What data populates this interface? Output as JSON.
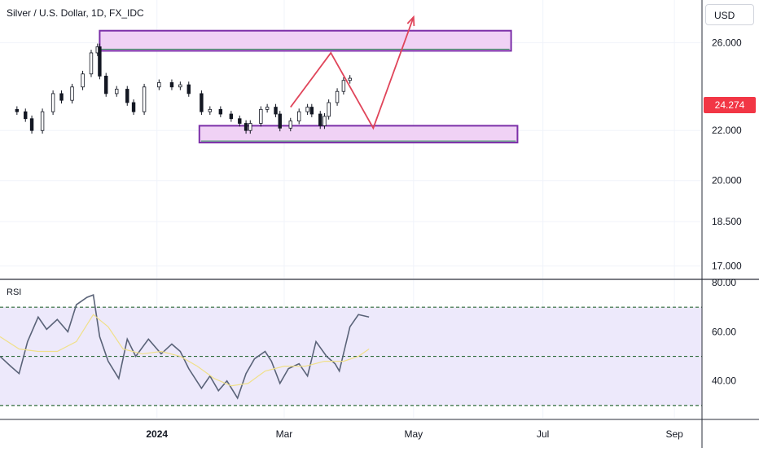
{
  "header": {
    "symbol_title": "Silver / U.S. Dollar, 1D, FX_IDC",
    "currency_button": "USD"
  },
  "price_badge": {
    "value": "24.274",
    "color": "#f23645"
  },
  "rsi_panel": {
    "label": "RSI"
  },
  "colors": {
    "candle_up": "#131722",
    "zone_fill": "#f0d2f5",
    "zone_border": "#7b2fa8",
    "zone_inner_border": "#2e8b57",
    "arrow": "#e0455a",
    "rsi_line": "#5a6378",
    "rsi_ma": "#f0e08a",
    "rsi_band_fill": "#ede9fb",
    "rsi_levels": "#2e6b3a",
    "grid": "#f0f3fa"
  },
  "chart_data": [
    {
      "type": "candlestick",
      "title": "Silver / U.S. Dollar, 1D, FX_IDC",
      "x_tick_labels": [
        "2024",
        "Mar",
        "May",
        "Jul",
        "Sep"
      ],
      "x_tick_dates": [
        "2024-01-01",
        "2024-03-01",
        "2024-05-01",
        "2024-07-01",
        "2024-09-01"
      ],
      "y_tick_labels": [
        "17.000",
        "18.500",
        "20.000",
        "22.000",
        "26.000"
      ],
      "y_tick_values": [
        17.0,
        18.5,
        20.0,
        22.0,
        26.0
      ],
      "xlim": [
        "2023-10-19",
        "2024-09-14"
      ],
      "ylim": [
        16.6,
        28.2
      ],
      "y_scale": "log",
      "last_price": 24.274,
      "closes": [
        {
          "date": "2023-10-23",
          "close": 22.9
        },
        {
          "date": "2023-10-27",
          "close": 22.8
        },
        {
          "date": "2023-10-31",
          "close": 22.5
        },
        {
          "date": "2023-11-03",
          "close": 22.0
        },
        {
          "date": "2023-11-08",
          "close": 22.8
        },
        {
          "date": "2023-11-13",
          "close": 23.6
        },
        {
          "date": "2023-11-17",
          "close": 23.3
        },
        {
          "date": "2023-11-22",
          "close": 23.9
        },
        {
          "date": "2023-11-27",
          "close": 24.5
        },
        {
          "date": "2023-12-01",
          "close": 25.5
        },
        {
          "date": "2023-12-04",
          "close": 25.8
        },
        {
          "date": "2023-12-05",
          "close": 24.4
        },
        {
          "date": "2023-12-08",
          "close": 23.6
        },
        {
          "date": "2023-12-13",
          "close": 23.8
        },
        {
          "date": "2023-12-18",
          "close": 23.2
        },
        {
          "date": "2023-12-21",
          "close": 22.8
        },
        {
          "date": "2023-12-26",
          "close": 23.9
        },
        {
          "date": "2024-01-02",
          "close": 24.1
        },
        {
          "date": "2024-01-08",
          "close": 23.9
        },
        {
          "date": "2024-01-12",
          "close": 24.0
        },
        {
          "date": "2024-01-16",
          "close": 23.6
        },
        {
          "date": "2024-01-22",
          "close": 22.8
        },
        {
          "date": "2024-01-26",
          "close": 22.9
        },
        {
          "date": "2024-01-31",
          "close": 22.7
        },
        {
          "date": "2024-02-05",
          "close": 22.5
        },
        {
          "date": "2024-02-09",
          "close": 22.3
        },
        {
          "date": "2024-02-12",
          "close": 22.0
        },
        {
          "date": "2024-02-14",
          "close": 22.3
        },
        {
          "date": "2024-02-19",
          "close": 22.9
        },
        {
          "date": "2024-02-22",
          "close": 23.0
        },
        {
          "date": "2024-02-26",
          "close": 22.7
        },
        {
          "date": "2024-02-28",
          "close": 22.1
        },
        {
          "date": "2024-03-04",
          "close": 22.4
        },
        {
          "date": "2024-03-08",
          "close": 22.8
        },
        {
          "date": "2024-03-12",
          "close": 23.0
        },
        {
          "date": "2024-03-14",
          "close": 22.7
        },
        {
          "date": "2024-03-18",
          "close": 22.2
        },
        {
          "date": "2024-03-20",
          "close": 22.6
        },
        {
          "date": "2024-03-22",
          "close": 23.2
        },
        {
          "date": "2024-03-26",
          "close": 23.7
        },
        {
          "date": "2024-03-29",
          "close": 24.2
        },
        {
          "date": "2024-04-01",
          "close": 24.3
        }
      ],
      "zones": [
        {
          "name": "resistance",
          "from": "2023-12-05",
          "to": "2024-06-16",
          "low": 25.6,
          "high": 26.6
        },
        {
          "name": "support",
          "from": "2024-01-21",
          "to": "2024-06-19",
          "low": 21.5,
          "high": 22.2
        }
      ],
      "projection_path": [
        {
          "date": "2024-03-04",
          "price": 23.0
        },
        {
          "date": "2024-03-23",
          "price": 25.5
        },
        {
          "date": "2024-04-12",
          "price": 22.1
        },
        {
          "date": "2024-05-01",
          "price": 27.3
        }
      ]
    },
    {
      "type": "line",
      "title": "RSI",
      "y_tick_labels": [
        "40.00",
        "60.00",
        "80.00"
      ],
      "y_tick_values": [
        40,
        60,
        80
      ],
      "ylim": [
        25,
        81
      ],
      "levels": [
        30,
        50,
        70
      ],
      "series": [
        {
          "values": [
            {
              "date": "2023-10-19",
              "value": 50
            },
            {
              "date": "2023-10-24",
              "value": 46
            },
            {
              "date": "2023-10-28",
              "value": 43
            },
            {
              "date": "2023-11-01",
              "value": 56
            },
            {
              "date": "2023-11-06",
              "value": 66
            },
            {
              "date": "2023-11-10",
              "value": 61
            },
            {
              "date": "2023-11-15",
              "value": 65
            },
            {
              "date": "2023-11-20",
              "value": 60
            },
            {
              "date": "2023-11-24",
              "value": 71
            },
            {
              "date": "2023-11-29",
              "value": 74
            },
            {
              "date": "2023-12-02",
              "value": 75
            },
            {
              "date": "2023-12-05",
              "value": 58
            },
            {
              "date": "2023-12-09",
              "value": 48
            },
            {
              "date": "2023-12-14",
              "value": 41
            },
            {
              "date": "2023-12-18",
              "value": 57
            },
            {
              "date": "2023-12-22",
              "value": 50
            },
            {
              "date": "2023-12-28",
              "value": 57
            },
            {
              "date": "2024-01-03",
              "value": 51
            },
            {
              "date": "2024-01-08",
              "value": 55
            },
            {
              "date": "2024-01-12",
              "value": 52
            },
            {
              "date": "2024-01-16",
              "value": 45
            },
            {
              "date": "2024-01-22",
              "value": 37
            },
            {
              "date": "2024-01-26",
              "value": 42
            },
            {
              "date": "2024-01-30",
              "value": 36
            },
            {
              "date": "2024-02-03",
              "value": 40
            },
            {
              "date": "2024-02-08",
              "value": 33
            },
            {
              "date": "2024-02-12",
              "value": 43
            },
            {
              "date": "2024-02-16",
              "value": 49
            },
            {
              "date": "2024-02-21",
              "value": 52
            },
            {
              "date": "2024-02-24",
              "value": 48
            },
            {
              "date": "2024-02-28",
              "value": 39
            },
            {
              "date": "2024-03-03",
              "value": 45
            },
            {
              "date": "2024-03-08",
              "value": 47
            },
            {
              "date": "2024-03-12",
              "value": 42
            },
            {
              "date": "2024-03-16",
              "value": 56
            },
            {
              "date": "2024-03-21",
              "value": 50
            },
            {
              "date": "2024-03-25",
              "value": 47
            },
            {
              "date": "2024-03-27",
              "value": 44
            },
            {
              "date": "2024-04-01",
              "value": 62
            },
            {
              "date": "2024-04-05",
              "value": 67
            },
            {
              "date": "2024-04-10",
              "value": 66
            }
          ]
        },
        {
          "values": [
            {
              "date": "2023-10-19",
              "value": 58
            },
            {
              "date": "2023-10-28",
              "value": 53
            },
            {
              "date": "2023-11-06",
              "value": 52
            },
            {
              "date": "2023-11-15",
              "value": 52
            },
            {
              "date": "2023-11-24",
              "value": 56
            },
            {
              "date": "2023-12-02",
              "value": 67
            },
            {
              "date": "2023-12-09",
              "value": 62
            },
            {
              "date": "2023-12-16",
              "value": 53
            },
            {
              "date": "2023-12-25",
              "value": 51
            },
            {
              "date": "2024-01-03",
              "value": 52
            },
            {
              "date": "2024-01-12",
              "value": 50
            },
            {
              "date": "2024-01-20",
              "value": 46
            },
            {
              "date": "2024-01-28",
              "value": 41
            },
            {
              "date": "2024-02-05",
              "value": 38
            },
            {
              "date": "2024-02-13",
              "value": 39
            },
            {
              "date": "2024-02-21",
              "value": 44
            },
            {
              "date": "2024-03-01",
              "value": 46
            },
            {
              "date": "2024-03-11",
              "value": 46
            },
            {
              "date": "2024-03-20",
              "value": 48
            },
            {
              "date": "2024-03-29",
              "value": 48
            },
            {
              "date": "2024-04-05",
              "value": 50
            },
            {
              "date": "2024-04-10",
              "value": 53
            }
          ]
        }
      ]
    }
  ]
}
